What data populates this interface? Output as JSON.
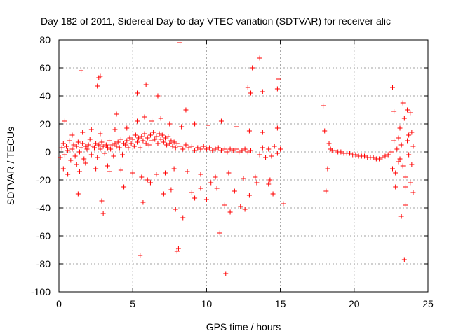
{
  "chart_data": {
    "type": "scatter",
    "title": "Day 182 of 2011, Sidereal Day-to-day VTEC variation (SDTVAR) for receiver alic",
    "xlabel": "GPS time / hours",
    "ylabel": "SDTVAR / TECUs",
    "xlim": [
      0,
      25
    ],
    "ylim": [
      -100,
      80
    ],
    "xticks": [
      0,
      5,
      10,
      15,
      20,
      25
    ],
    "yticks": [
      -100,
      -80,
      -60,
      -40,
      -20,
      0,
      20,
      40,
      60,
      80
    ],
    "xtick_labels": [
      "0",
      "5",
      "10",
      "15",
      "20",
      "25"
    ],
    "ytick_labels": [
      "-100",
      "-80",
      "-60",
      "-40",
      "-20",
      "0",
      "20",
      "40",
      "60",
      "80"
    ],
    "grid": true,
    "marker": "+",
    "color": "#ff0000",
    "series": [
      {
        "name": "SDTVAR",
        "points": [
          [
            0.1,
            -4
          ],
          [
            0.2,
            3
          ],
          [
            0.3,
            6
          ],
          [
            0.4,
            -2
          ],
          [
            0.5,
            4
          ],
          [
            0.6,
            1
          ],
          [
            0.7,
            8
          ],
          [
            0.8,
            -6
          ],
          [
            0.9,
            2
          ],
          [
            1.0,
            5
          ],
          [
            1.1,
            -3
          ],
          [
            1.2,
            4
          ],
          [
            1.3,
            7
          ],
          [
            1.4,
            0
          ],
          [
            1.5,
            3
          ],
          [
            1.6,
            6
          ],
          [
            1.7,
            -5
          ],
          [
            1.8,
            4
          ],
          [
            1.9,
            2
          ],
          [
            2.0,
            5
          ],
          [
            2.1,
            9
          ],
          [
            2.2,
            -2
          ],
          [
            2.3,
            4
          ],
          [
            2.4,
            3
          ],
          [
            2.5,
            6
          ],
          [
            2.6,
            -4
          ],
          [
            2.7,
            5
          ],
          [
            2.8,
            2
          ],
          [
            2.9,
            7
          ],
          [
            3.0,
            4
          ],
          [
            3.1,
            -1
          ],
          [
            3.2,
            5
          ],
          [
            3.3,
            3
          ],
          [
            3.4,
            8
          ],
          [
            3.5,
            2
          ],
          [
            3.6,
            5
          ],
          [
            3.7,
            -3
          ],
          [
            3.8,
            6
          ],
          [
            3.9,
            4
          ],
          [
            4.0,
            7
          ],
          [
            4.1,
            3
          ],
          [
            4.2,
            9
          ],
          [
            4.3,
            -2
          ],
          [
            4.4,
            6
          ],
          [
            4.5,
            5
          ],
          [
            4.6,
            8
          ],
          [
            4.7,
            3
          ],
          [
            4.8,
            10
          ],
          [
            4.9,
            6
          ],
          [
            5.0,
            9
          ],
          [
            5.1,
            4
          ],
          [
            5.2,
            12
          ],
          [
            5.3,
            7
          ],
          [
            5.4,
            10
          ],
          [
            5.5,
            3
          ],
          [
            5.6,
            11
          ],
          [
            5.7,
            8
          ],
          [
            5.8,
            13
          ],
          [
            5.9,
            6
          ],
          [
            6.0,
            10
          ],
          [
            6.1,
            5
          ],
          [
            6.2,
            12
          ],
          [
            6.3,
            8
          ],
          [
            6.4,
            14
          ],
          [
            6.5,
            9
          ],
          [
            6.6,
            11
          ],
          [
            6.7,
            6
          ],
          [
            6.8,
            13
          ],
          [
            6.9,
            9
          ],
          [
            7.0,
            12
          ],
          [
            7.1,
            7
          ],
          [
            7.2,
            10
          ],
          [
            7.3,
            5
          ],
          [
            7.4,
            11
          ],
          [
            7.5,
            6
          ],
          [
            7.6,
            8
          ],
          [
            7.7,
            4
          ],
          [
            7.8,
            7
          ],
          [
            7.9,
            3
          ],
          [
            8.0,
            6
          ],
          [
            8.2,
            4
          ],
          [
            8.4,
            2
          ],
          [
            8.6,
            5
          ],
          [
            8.8,
            3
          ],
          [
            9.0,
            4
          ],
          [
            9.2,
            1
          ],
          [
            9.4,
            3
          ],
          [
            9.6,
            2
          ],
          [
            9.8,
            4
          ],
          [
            10.0,
            2
          ],
          [
            10.2,
            3
          ],
          [
            10.4,
            1
          ],
          [
            10.6,
            2
          ],
          [
            10.8,
            3
          ],
          [
            11.0,
            1
          ],
          [
            11.2,
            2
          ],
          [
            11.4,
            0
          ],
          [
            11.6,
            2
          ],
          [
            11.8,
            1
          ],
          [
            12.0,
            2
          ],
          [
            12.2,
            0
          ],
          [
            12.4,
            1
          ],
          [
            12.6,
            2
          ],
          [
            12.8,
            0
          ],
          [
            13.0,
            1
          ],
          [
            13.6,
            -2
          ],
          [
            13.8,
            3
          ],
          [
            14.0,
            -4
          ],
          [
            14.2,
            2
          ],
          [
            14.4,
            -3
          ],
          [
            14.6,
            4
          ],
          [
            14.8,
            -1
          ],
          [
            15.0,
            2
          ],
          [
            0.3,
            -12
          ],
          [
            0.6,
            -16
          ],
          [
            0.9,
            12
          ],
          [
            1.2,
            -9
          ],
          [
            1.4,
            -14
          ],
          [
            1.6,
            14
          ],
          [
            1.8,
            -8
          ],
          [
            2.2,
            16
          ],
          [
            2.5,
            -12
          ],
          [
            2.8,
            13
          ],
          [
            3.3,
            -10
          ],
          [
            3.8,
            16
          ],
          [
            4.2,
            -13
          ],
          [
            4.6,
            17
          ],
          [
            5.0,
            -15
          ],
          [
            5.3,
            22
          ],
          [
            5.6,
            -18
          ],
          [
            5.8,
            25
          ],
          [
            6.0,
            -20
          ],
          [
            6.3,
            22
          ],
          [
            6.6,
            -16
          ],
          [
            6.9,
            24
          ],
          [
            7.2,
            -15
          ],
          [
            7.5,
            20
          ],
          [
            7.8,
            -12
          ],
          [
            8.3,
            18
          ],
          [
            8.7,
            -14
          ],
          [
            9.2,
            20
          ],
          [
            9.6,
            -16
          ],
          [
            10.1,
            19
          ],
          [
            10.6,
            -18
          ],
          [
            11.0,
            22
          ],
          [
            11.5,
            -15
          ],
          [
            12.0,
            18
          ],
          [
            12.5,
            -19
          ],
          [
            12.9,
            15
          ],
          [
            13.3,
            -18
          ],
          [
            13.8,
            14
          ],
          [
            14.3,
            -20
          ],
          [
            14.8,
            17
          ],
          [
            0.4,
            22
          ],
          [
            1.3,
            -30
          ],
          [
            1.5,
            58
          ],
          [
            2.6,
            47
          ],
          [
            2.7,
            53
          ],
          [
            2.8,
            54
          ],
          [
            2.9,
            -35
          ],
          [
            3.0,
            -44
          ],
          [
            3.4,
            -14
          ],
          [
            3.9,
            27
          ],
          [
            4.4,
            -25
          ],
          [
            5.3,
            42
          ],
          [
            5.7,
            -36
          ],
          [
            5.9,
            48
          ],
          [
            6.2,
            -22
          ],
          [
            6.7,
            40
          ],
          [
            7.1,
            -30
          ],
          [
            7.6,
            -27
          ],
          [
            7.9,
            -41
          ],
          [
            8.0,
            -71
          ],
          [
            8.1,
            -69
          ],
          [
            8.2,
            78
          ],
          [
            8.4,
            -47
          ],
          [
            8.6,
            30
          ],
          [
            9.0,
            -29
          ],
          [
            9.2,
            -33
          ],
          [
            9.6,
            -26
          ],
          [
            10.0,
            -34
          ],
          [
            10.3,
            -22
          ],
          [
            10.7,
            -26
          ],
          [
            10.9,
            -58
          ],
          [
            11.2,
            -38
          ],
          [
            11.3,
            -87
          ],
          [
            11.6,
            -43
          ],
          [
            11.9,
            -28
          ],
          [
            12.3,
            -39
          ],
          [
            12.6,
            -41
          ],
          [
            12.9,
            -31
          ],
          [
            13.1,
            60
          ],
          [
            13.4,
            -22
          ],
          [
            13.6,
            67
          ],
          [
            13.8,
            43
          ],
          [
            14.2,
            -23
          ],
          [
            14.5,
            -30
          ],
          [
            14.8,
            45
          ],
          [
            14.9,
            52
          ],
          [
            15.2,
            -37
          ],
          [
            5.5,
            -74
          ],
          [
            12.8,
            46
          ],
          [
            13.0,
            42
          ],
          [
            17.9,
            33
          ],
          [
            18.0,
            15
          ],
          [
            18.1,
            -28
          ],
          [
            18.2,
            -12
          ],
          [
            18.3,
            6
          ],
          [
            18.4,
            2
          ],
          [
            18.5,
            1
          ],
          [
            18.7,
            1
          ],
          [
            18.9,
            0
          ],
          [
            19.1,
            0
          ],
          [
            19.3,
            -1
          ],
          [
            19.5,
            -1
          ],
          [
            19.7,
            -1
          ],
          [
            19.9,
            -2
          ],
          [
            20.1,
            -2
          ],
          [
            20.3,
            -3
          ],
          [
            20.5,
            -3
          ],
          [
            20.7,
            -3
          ],
          [
            20.9,
            -4
          ],
          [
            21.1,
            -4
          ],
          [
            21.3,
            -4
          ],
          [
            21.5,
            -5
          ],
          [
            21.7,
            -5
          ],
          [
            21.9,
            -4
          ],
          [
            22.1,
            -3
          ],
          [
            22.3,
            -2
          ],
          [
            22.5,
            0
          ],
          [
            22.6,
            46
          ],
          [
            22.7,
            29
          ],
          [
            22.8,
            -15
          ],
          [
            22.9,
            2
          ],
          [
            23.0,
            10
          ],
          [
            23.1,
            -5
          ],
          [
            23.2,
            5
          ],
          [
            23.3,
            -10
          ],
          [
            23.4,
            24
          ],
          [
            23.5,
            -18
          ],
          [
            23.6,
            8
          ],
          [
            23.7,
            -2
          ],
          [
            23.8,
            28
          ],
          [
            23.9,
            -9
          ],
          [
            24.0,
            4
          ],
          [
            23.2,
            -46
          ],
          [
            23.4,
            -77
          ],
          [
            23.5,
            -38
          ],
          [
            23.8,
            -22
          ],
          [
            24.0,
            -29
          ],
          [
            22.8,
            -25
          ],
          [
            23.1,
            17
          ],
          [
            23.3,
            35
          ],
          [
            23.6,
            30
          ],
          [
            23.9,
            14
          ],
          [
            22.6,
            -12
          ],
          [
            23.0,
            -7
          ],
          [
            23.7,
            12
          ],
          [
            22.7,
            8
          ],
          [
            23.5,
            -25
          ]
        ]
      }
    ]
  }
}
